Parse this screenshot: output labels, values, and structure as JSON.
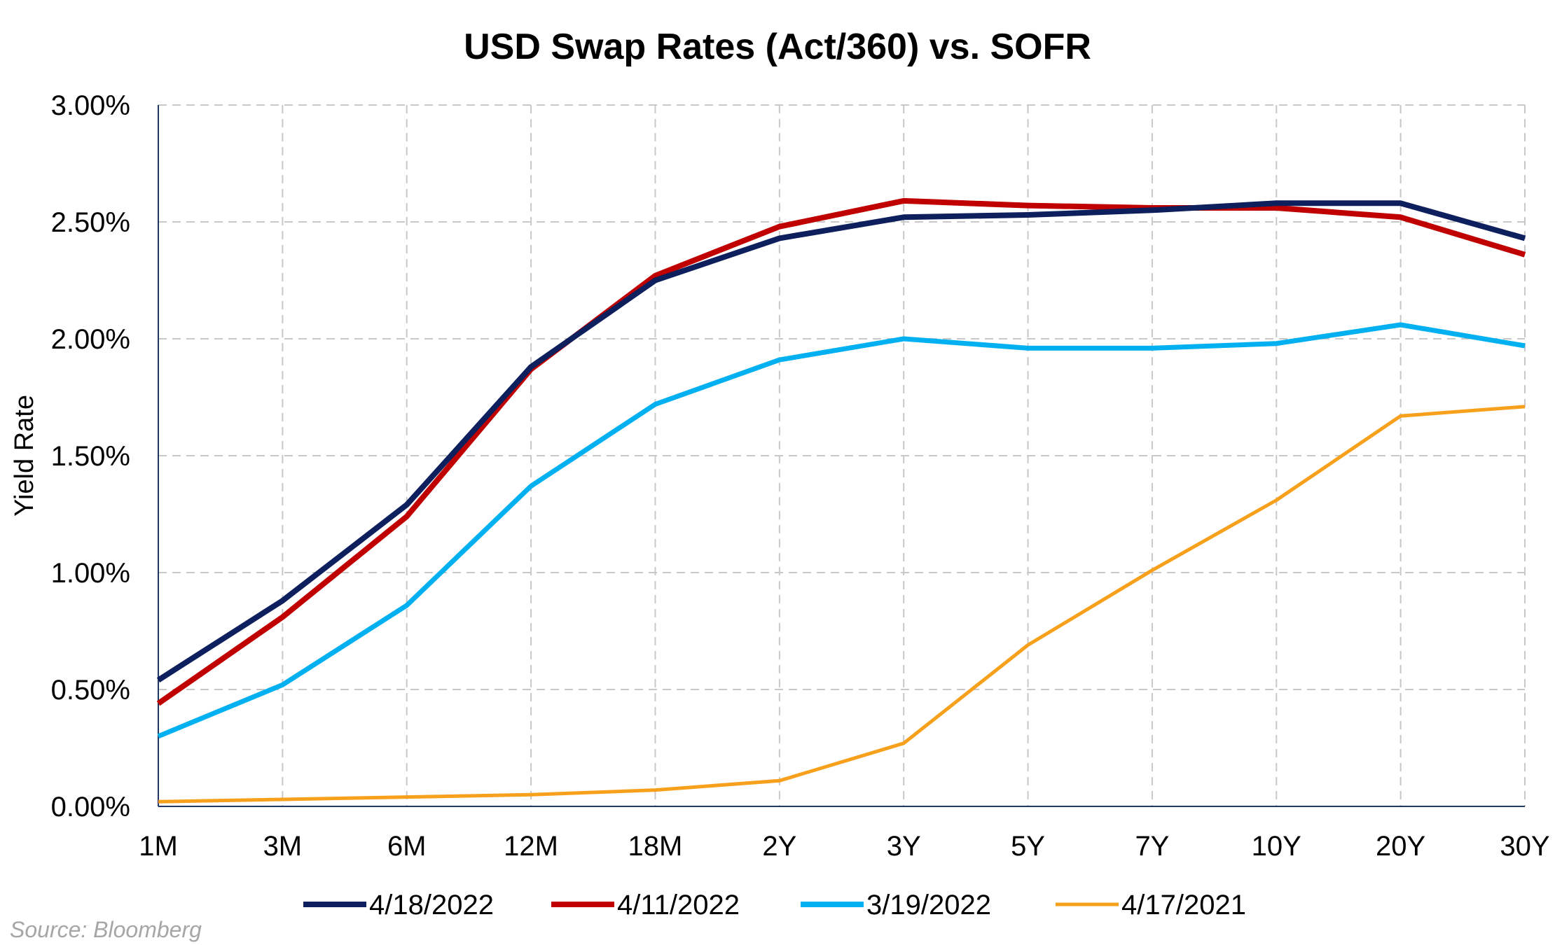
{
  "chart_data": {
    "type": "line",
    "title": "USD Swap Rates (Act/360) vs. SOFR",
    "xlabel": "",
    "ylabel": "Yield Rate",
    "categories": [
      "1M",
      "3M",
      "6M",
      "12M",
      "18M",
      "2Y",
      "3Y",
      "5Y",
      "7Y",
      "10Y",
      "20Y",
      "30Y"
    ],
    "ylim": [
      0,
      3
    ],
    "yticks": [
      "0.00%",
      "0.50%",
      "1.00%",
      "1.50%",
      "2.00%",
      "2.50%",
      "3.00%"
    ],
    "grid": true,
    "legend_position": "bottom",
    "series": [
      {
        "name": "4/18/2022",
        "color": "#0d1f5c",
        "values": [
          0.54,
          0.88,
          1.29,
          1.88,
          2.25,
          2.43,
          2.52,
          2.53,
          2.55,
          2.58,
          2.58,
          2.43
        ]
      },
      {
        "name": "4/11/2022",
        "color": "#c00000",
        "values": [
          0.44,
          0.81,
          1.24,
          1.87,
          2.27,
          2.48,
          2.59,
          2.57,
          2.56,
          2.56,
          2.52,
          2.36
        ]
      },
      {
        "name": "3/19/2022",
        "color": "#00b0f0",
        "values": [
          0.3,
          0.52,
          0.86,
          1.37,
          1.72,
          1.91,
          2.0,
          1.96,
          1.96,
          1.98,
          2.06,
          1.97
        ]
      },
      {
        "name": "4/17/2021",
        "color": "#f7a01c",
        "values": [
          0.02,
          0.03,
          0.04,
          0.05,
          0.07,
          0.11,
          0.27,
          0.69,
          1.01,
          1.31,
          1.67,
          1.71
        ]
      }
    ]
  },
  "source": "Source: Bloomberg"
}
